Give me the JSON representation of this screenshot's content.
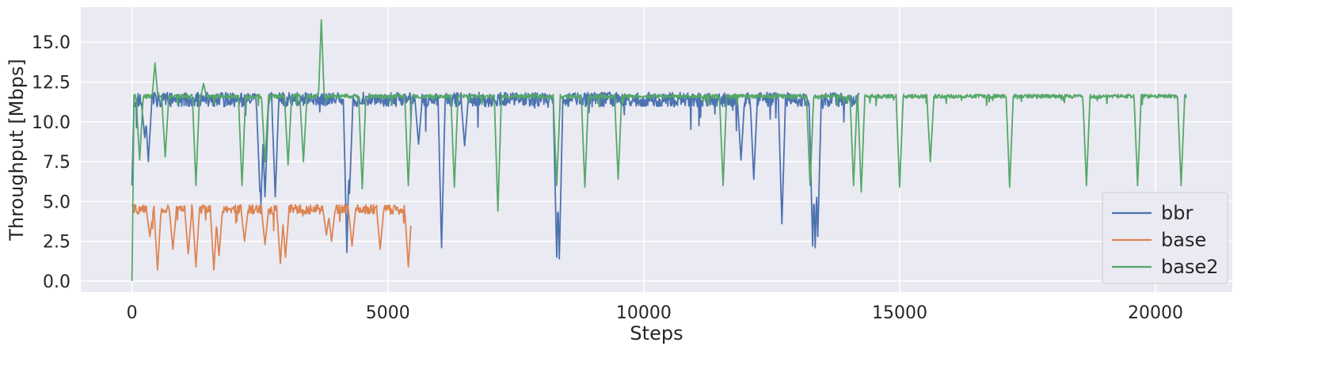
{
  "chart_data": {
    "type": "line",
    "title": "",
    "xlabel": "Steps",
    "ylabel": "Throughput [Mbps]",
    "xlim": [
      -1000,
      21500
    ],
    "ylim": [
      -0.7,
      17.2
    ],
    "x_ticks": [
      0,
      5000,
      10000,
      15000,
      20000
    ],
    "x_tick_labels": [
      "0",
      "5000",
      "10000",
      "15000",
      "20000"
    ],
    "y_ticks": [
      0.0,
      2.5,
      5.0,
      7.5,
      10.0,
      12.5,
      15.0
    ],
    "y_tick_labels": [
      "0.0",
      "2.5",
      "5.0",
      "7.5",
      "10.0",
      "12.5",
      "15.0"
    ],
    "grid": true,
    "background": "#EAEAF2",
    "legend_position": "lower-right",
    "series": [
      {
        "name": "bbr",
        "color": "#4C72B0",
        "x_range": [
          0,
          14200
        ],
        "baseline": 11.4,
        "noise": 0.9,
        "start_value": 6.0,
        "dips": [
          [
            250,
            9.0
          ],
          [
            320,
            7.5
          ],
          [
            2500,
            5.6
          ],
          [
            2520,
            4.8
          ],
          [
            2600,
            5.3
          ],
          [
            2800,
            5.3
          ],
          [
            4200,
            1.8
          ],
          [
            4250,
            5.5
          ],
          [
            5600,
            8.6
          ],
          [
            6050,
            2.1
          ],
          [
            6500,
            8.5
          ],
          [
            8300,
            1.5
          ],
          [
            8350,
            1.4
          ],
          [
            11900,
            7.6
          ],
          [
            12150,
            6.4
          ],
          [
            12700,
            3.6
          ],
          [
            13300,
            2.2
          ],
          [
            13350,
            2.1
          ],
          [
            13400,
            2.8
          ]
        ]
      },
      {
        "name": "base",
        "color": "#DD8452",
        "x_range": [
          0,
          5450
        ],
        "baseline": 4.5,
        "noise": 0.6,
        "start_value": 4.8,
        "dips": [
          [
            350,
            2.8
          ],
          [
            500,
            0.7
          ],
          [
            800,
            2.0
          ],
          [
            1100,
            1.7
          ],
          [
            1250,
            0.9
          ],
          [
            1600,
            0.7
          ],
          [
            1700,
            1.6
          ],
          [
            2200,
            2.5
          ],
          [
            2600,
            2.3
          ],
          [
            2900,
            1.1
          ],
          [
            3000,
            1.5
          ],
          [
            3800,
            2.9
          ],
          [
            3900,
            2.5
          ],
          [
            4300,
            2.2
          ],
          [
            4850,
            2.0
          ],
          [
            5400,
            0.9
          ]
        ]
      },
      {
        "name": "base2",
        "color": "#55A868",
        "x_range": [
          0,
          20600
        ],
        "baseline": 11.6,
        "noise": 0.25,
        "start_value": 0.0,
        "dips": [
          [
            150,
            7.6
          ],
          [
            650,
            7.8
          ],
          [
            1250,
            6.0
          ],
          [
            2150,
            6.0
          ],
          [
            2600,
            7.5
          ],
          [
            3050,
            7.3
          ],
          [
            3350,
            7.5
          ],
          [
            4500,
            5.8
          ],
          [
            5400,
            6.0
          ],
          [
            6300,
            5.9
          ],
          [
            7150,
            4.4
          ],
          [
            8300,
            6.0
          ],
          [
            8850,
            5.9
          ],
          [
            9500,
            6.4
          ],
          [
            11550,
            6.0
          ],
          [
            13250,
            6.0
          ],
          [
            14100,
            6.0
          ],
          [
            14250,
            5.6
          ],
          [
            15000,
            5.9
          ],
          [
            15600,
            7.5
          ],
          [
            17150,
            5.9
          ],
          [
            18650,
            6.0
          ],
          [
            19650,
            6.0
          ],
          [
            20500,
            6.0
          ]
        ],
        "spikes": [
          [
            450,
            13.7
          ],
          [
            1400,
            12.4
          ],
          [
            3700,
            16.4
          ]
        ]
      }
    ]
  }
}
